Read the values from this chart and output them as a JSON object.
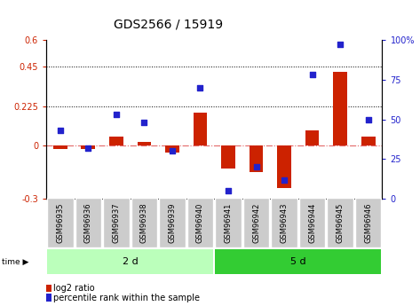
{
  "title": "GDS2566 / 15919",
  "samples": [
    "GSM96935",
    "GSM96936",
    "GSM96937",
    "GSM96938",
    "GSM96939",
    "GSM96940",
    "GSM96941",
    "GSM96942",
    "GSM96943",
    "GSM96944",
    "GSM96945",
    "GSM96946"
  ],
  "log2_ratio": [
    -0.02,
    -0.02,
    0.05,
    0.02,
    -0.04,
    0.19,
    -0.13,
    -0.15,
    -0.24,
    0.09,
    0.42,
    0.05
  ],
  "percentile_rank": [
    43,
    32,
    53,
    48,
    30,
    70,
    5,
    20,
    12,
    78,
    97,
    50
  ],
  "group1_label": "2 d",
  "group2_label": "5 d",
  "group1_count": 6,
  "group2_count": 6,
  "ylim_left": [
    -0.3,
    0.6
  ],
  "ylim_right": [
    0,
    100
  ],
  "yticks_left": [
    -0.3,
    0.0,
    0.225,
    0.45,
    0.6
  ],
  "yticks_right": [
    0,
    25,
    50,
    75,
    100
  ],
  "hlines": [
    0.225,
    0.45
  ],
  "bar_color": "#cc2200",
  "dot_color": "#2222cc",
  "background_color": "#ffffff",
  "group1_bg": "#bbffbb",
  "group2_bg": "#33cc33",
  "sample_bg": "#cccccc",
  "zero_line_color": "#dd4444",
  "time_label": "time",
  "bar_width": 0.5,
  "title_fontsize": 10,
  "tick_fontsize": 7,
  "label_fontsize": 6,
  "legend_fontsize": 7,
  "group_fontsize": 8
}
